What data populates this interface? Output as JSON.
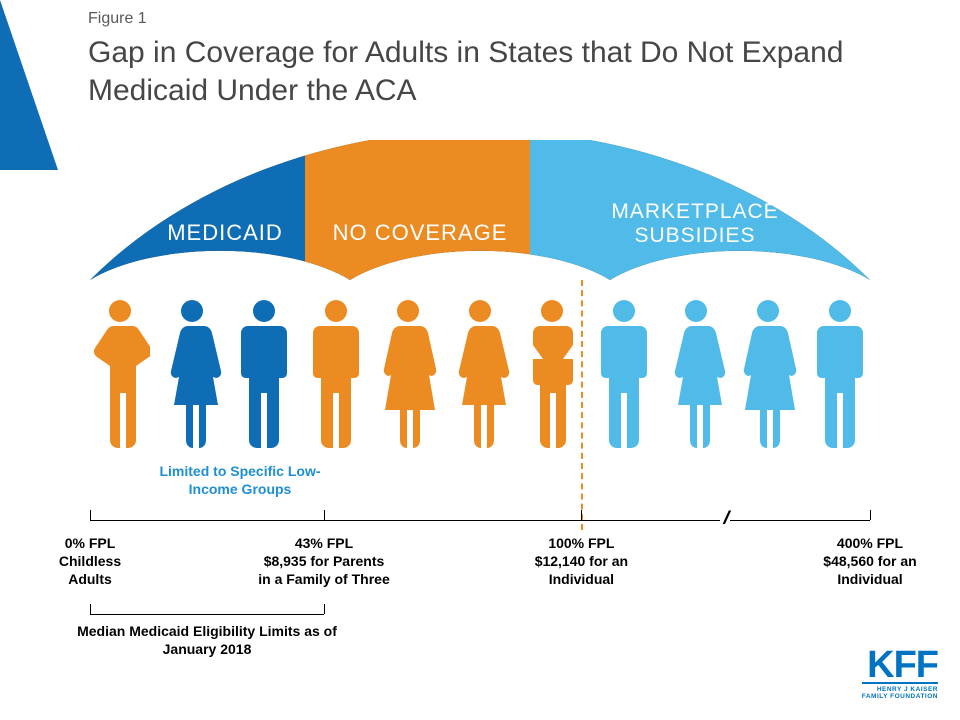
{
  "colors": {
    "dark_blue": "#0f6db6",
    "orange": "#ec8b22",
    "light_blue": "#50bae8",
    "text_gray": "#595959",
    "title_gray": "#464646",
    "limited_blue": "#1f8fd3",
    "kff_blue": "#0073c2"
  },
  "figure_label": "Figure 1",
  "title": "Gap in Coverage for Adults in States that Do Not Expand Medicaid Under the ACA",
  "umbrella": {
    "sections": [
      {
        "label": "MEDICAID",
        "color_key": "dark_blue"
      },
      {
        "label": "NO COVERAGE",
        "color_key": "orange"
      },
      {
        "label_line1": "MARKETPLACE",
        "label_line2": "SUBSIDIES",
        "color_key": "light_blue"
      }
    ]
  },
  "people": [
    {
      "color_key": "orange",
      "variant": "arms-hip"
    },
    {
      "color_key": "dark_blue",
      "variant": "female"
    },
    {
      "color_key": "dark_blue",
      "variant": "male"
    },
    {
      "color_key": "orange",
      "variant": "male"
    },
    {
      "color_key": "orange",
      "variant": "dress"
    },
    {
      "color_key": "orange",
      "variant": "female"
    },
    {
      "color_key": "orange",
      "variant": "arms-cross"
    },
    {
      "color_key": "light_blue",
      "variant": "male"
    },
    {
      "color_key": "light_blue",
      "variant": "female"
    },
    {
      "color_key": "light_blue",
      "variant": "dress"
    },
    {
      "color_key": "light_blue",
      "variant": "male"
    }
  ],
  "limited_label": "Limited to Specific Low-Income Groups",
  "axis": {
    "break_glyph": "//",
    "break_pos_pct": 82,
    "ticks": [
      {
        "pos_pct": 0,
        "line1": "0% FPL",
        "line2": "Childless",
        "line3": "Adults"
      },
      {
        "pos_pct": 30,
        "line1": "43% FPL",
        "line2": "$8,935 for Parents",
        "line3": "in a Family of Three"
      },
      {
        "pos_pct": 63,
        "line1": "100% FPL",
        "line2": "$12,140 for an",
        "line3": "Individual"
      },
      {
        "pos_pct": 100,
        "line1": "400% FPL",
        "line2": "$48,560 for an",
        "line3": "Individual"
      }
    ],
    "dashed_divider_pos_pct": 63
  },
  "median_label": "Median Medicaid Eligibility Limits as of January 2018",
  "logo": {
    "abbr": "KFF",
    "line1": "HENRY J KAISER",
    "line2": "FAMILY FOUNDATION"
  }
}
